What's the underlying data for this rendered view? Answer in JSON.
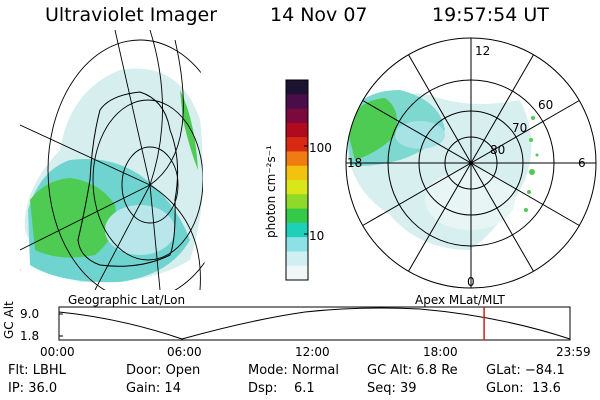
{
  "header": {
    "instrument": "Ultraviolet Imager",
    "date": "14 Nov 07",
    "time": "19:57:54 UT"
  },
  "geo_panel": {
    "label": "Geographic Lat/Lon"
  },
  "polar_panel": {
    "label": "Apex  MLat/MLT",
    "mlt_labels": [
      "12",
      "18",
      "6",
      "0"
    ],
    "lat_labels": [
      "60",
      "70",
      "80"
    ]
  },
  "colorbar": {
    "unit_label": "photon cm⁻²s⁻¹",
    "tick_labels": [
      "100",
      "10"
    ],
    "colors": [
      "#1b1330",
      "#4a0d4a",
      "#7a0a3d",
      "#b00a1e",
      "#d82a12",
      "#f07b12",
      "#f2c20f",
      "#d8e61a",
      "#8fd92a",
      "#35c94a",
      "#1fd0b8",
      "#8de0e6",
      "#cfeff2",
      "#f1f7f7"
    ]
  },
  "timeline": {
    "ylabel": "GC Alt",
    "ytick_labels": [
      "9.0",
      "1.8"
    ],
    "xtick_labels": [
      "00:00",
      "06:00",
      "12:00",
      "18:00",
      "23:59"
    ],
    "current_time": "19:57"
  },
  "info": {
    "filter": {
      "label": "Flt:",
      "value": "LBHL"
    },
    "ip": {
      "label": "IP:",
      "value": "36.0"
    },
    "door": {
      "label": "Door:",
      "value": "Open"
    },
    "gain": {
      "label": "Gain:",
      "value": "14"
    },
    "mode": {
      "label": "Mode:",
      "value": "Normal"
    },
    "dsp": {
      "label": "Dsp:",
      "value": "6.1"
    },
    "gc_alt": {
      "label": "GC Alt:",
      "value": "6.8 Re"
    },
    "seq": {
      "label": "Seq:",
      "value": "39"
    },
    "glat": {
      "label": "GLat:",
      "value": "−84.1"
    },
    "glon": {
      "label": "GLon:",
      "value": "13.6"
    }
  },
  "colors": {
    "accent_red": "#d0201a",
    "aurora_green": "#35c94a",
    "aurora_cyan": "#5fd6c8",
    "pale_cyan": "#cfeeee"
  }
}
